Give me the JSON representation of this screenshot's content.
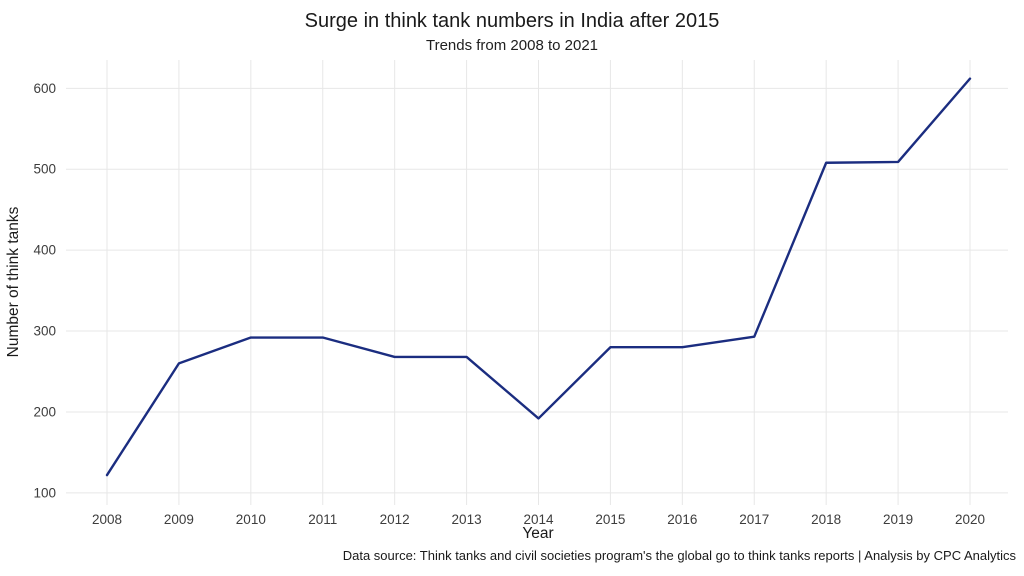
{
  "chart_data": {
    "type": "line",
    "title": "Surge in think tank numbers in India after 2015",
    "subtitle": "Trends from 2008 to 2021",
    "xlabel": "Year",
    "ylabel": "Number of think tanks",
    "categories": [
      2008,
      2009,
      2010,
      2011,
      2012,
      2013,
      2014,
      2015,
      2016,
      2017,
      2018,
      2019,
      2020
    ],
    "values": [
      122,
      260,
      292,
      292,
      268,
      268,
      192,
      280,
      280,
      293,
      508,
      509,
      612
    ],
    "yticks": [
      100,
      200,
      300,
      400,
      500,
      600
    ],
    "ylim": [
      85,
      635
    ],
    "grid": true,
    "legend_position": "none",
    "line_color": "#1b2d80",
    "grid_color": "#e7e7e7",
    "background_color": "#ffffff",
    "caption": "Data source: Think tanks and civil societies program's the global go to think tanks reports | Analysis by CPC Analytics"
  }
}
